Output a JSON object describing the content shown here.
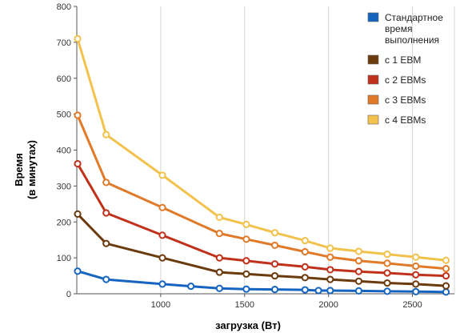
{
  "chart_data": {
    "type": "line",
    "title": "",
    "xlabel": "загрузка (Вт)",
    "ylabel_lines": [
      "Время",
      "(в минутах)"
    ],
    "xlim": [
      500,
      2750
    ],
    "ylim": [
      0,
      800
    ],
    "x_ticks": [
      1000,
      1500,
      2000,
      2500
    ],
    "y_ticks": [
      0,
      100,
      200,
      300,
      400,
      500,
      600,
      700,
      800
    ],
    "grid": "vertical",
    "legend_position": "top-right",
    "series": [
      {
        "name": "Стандартное время выполнения",
        "legend_lines": [
          "Стандартное",
          "время",
          "выполнения"
        ],
        "color": "#1565c0",
        "x": [
          505,
          675,
          1010,
          1180,
          1350,
          1510,
          1680,
          1860,
          1940,
          2010,
          2180,
          2350,
          2520,
          2700
        ],
        "y": [
          63,
          40,
          27,
          21,
          15,
          13,
          12,
          11,
          9,
          9,
          8,
          7,
          6,
          5
        ]
      },
      {
        "name": "с 1 EBM",
        "color": "#6b3b0e",
        "x": [
          505,
          675,
          1010,
          1350,
          1510,
          1680,
          1860,
          2010,
          2180,
          2350,
          2520,
          2700
        ],
        "y": [
          222,
          140,
          100,
          60,
          55,
          50,
          45,
          40,
          35,
          30,
          27,
          22
        ]
      },
      {
        "name": "с 2 EBMs",
        "color": "#c0311b",
        "x": [
          505,
          675,
          1010,
          1350,
          1510,
          1680,
          1860,
          2010,
          2180,
          2350,
          2520,
          2700
        ],
        "y": [
          362,
          225,
          163,
          100,
          92,
          83,
          75,
          67,
          62,
          58,
          53,
          50
        ]
      },
      {
        "name": "с 3 EBMs",
        "color": "#e07a28",
        "x": [
          505,
          675,
          1010,
          1350,
          1510,
          1680,
          1860,
          2010,
          2180,
          2350,
          2520,
          2700
        ],
        "y": [
          497,
          310,
          240,
          168,
          152,
          135,
          117,
          102,
          92,
          85,
          77,
          70
        ]
      },
      {
        "name": "с 4 EBMs",
        "color": "#f2c24d",
        "x": [
          505,
          675,
          1010,
          1350,
          1510,
          1680,
          1860,
          2010,
          2180,
          2350,
          2520,
          2700
        ],
        "y": [
          710,
          443,
          330,
          213,
          193,
          170,
          148,
          127,
          118,
          110,
          102,
          93
        ]
      }
    ]
  }
}
